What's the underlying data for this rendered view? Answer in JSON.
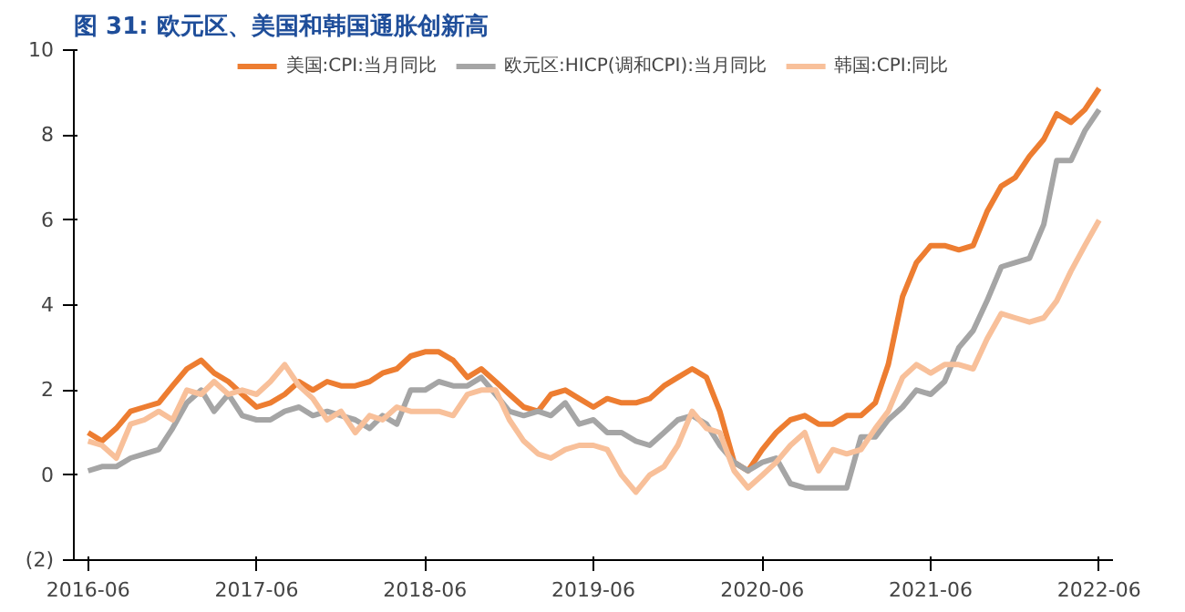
{
  "chart_data": {
    "type": "line",
    "title": "图 31: 欧元区、美国和韩国通胀创新高",
    "x": [
      "2016-06",
      "2016-07",
      "2016-08",
      "2016-09",
      "2016-10",
      "2016-11",
      "2016-12",
      "2017-01",
      "2017-02",
      "2017-03",
      "2017-04",
      "2017-05",
      "2017-06",
      "2017-07",
      "2017-08",
      "2017-09",
      "2017-10",
      "2017-11",
      "2017-12",
      "2018-01",
      "2018-02",
      "2018-03",
      "2018-04",
      "2018-05",
      "2018-06",
      "2018-07",
      "2018-08",
      "2018-09",
      "2018-10",
      "2018-11",
      "2018-12",
      "2019-01",
      "2019-02",
      "2019-03",
      "2019-04",
      "2019-05",
      "2019-06",
      "2019-07",
      "2019-08",
      "2019-09",
      "2019-10",
      "2019-11",
      "2019-12",
      "2020-01",
      "2020-02",
      "2020-03",
      "2020-04",
      "2020-05",
      "2020-06",
      "2020-07",
      "2020-08",
      "2020-09",
      "2020-10",
      "2020-11",
      "2020-12",
      "2021-01",
      "2021-02",
      "2021-03",
      "2021-04",
      "2021-05",
      "2021-06",
      "2021-07",
      "2021-08",
      "2021-09",
      "2021-10",
      "2021-11",
      "2021-12",
      "2022-01",
      "2022-02",
      "2022-03",
      "2022-04",
      "2022-05",
      "2022-06"
    ],
    "series": [
      {
        "name": "美国:CPI:当月同比",
        "color": "#ed7d31",
        "values": [
          1.0,
          0.8,
          1.1,
          1.5,
          1.6,
          1.7,
          2.1,
          2.5,
          2.7,
          2.4,
          2.2,
          1.9,
          1.6,
          1.7,
          1.9,
          2.2,
          2.0,
          2.2,
          2.1,
          2.1,
          2.2,
          2.4,
          2.5,
          2.8,
          2.9,
          2.9,
          2.7,
          2.3,
          2.5,
          2.2,
          1.9,
          1.6,
          1.5,
          1.9,
          2.0,
          1.8,
          1.6,
          1.8,
          1.7,
          1.7,
          1.8,
          2.1,
          2.3,
          2.5,
          2.3,
          1.5,
          0.3,
          0.1,
          0.6,
          1.0,
          1.3,
          1.4,
          1.2,
          1.2,
          1.4,
          1.4,
          1.7,
          2.6,
          4.2,
          5.0,
          5.4,
          5.4,
          5.3,
          5.4,
          6.2,
          6.8,
          7.0,
          7.5,
          7.9,
          8.5,
          8.3,
          8.6,
          9.1
        ]
      },
      {
        "name": "欧元区:HICP(调和CPI):当月同比",
        "color": "#a5a5a5",
        "values": [
          0.1,
          0.2,
          0.2,
          0.4,
          0.5,
          0.6,
          1.1,
          1.7,
          2.0,
          1.5,
          1.9,
          1.4,
          1.3,
          1.3,
          1.5,
          1.6,
          1.4,
          1.5,
          1.4,
          1.3,
          1.1,
          1.4,
          1.2,
          2.0,
          2.0,
          2.2,
          2.1,
          2.1,
          2.3,
          1.9,
          1.5,
          1.4,
          1.5,
          1.4,
          1.7,
          1.2,
          1.3,
          1.0,
          1.0,
          0.8,
          0.7,
          1.0,
          1.3,
          1.4,
          1.2,
          0.7,
          0.3,
          0.1,
          0.3,
          0.4,
          -0.2,
          -0.3,
          -0.3,
          -0.3,
          -0.3,
          0.9,
          0.9,
          1.3,
          1.6,
          2.0,
          1.9,
          2.2,
          3.0,
          3.4,
          4.1,
          4.9,
          5.0,
          5.1,
          5.9,
          7.4,
          7.4,
          8.1,
          8.6
        ]
      },
      {
        "name": "韩国:CPI:同比",
        "color": "#f8c09a",
        "values": [
          0.8,
          0.7,
          0.4,
          1.2,
          1.3,
          1.5,
          1.3,
          2.0,
          1.9,
          2.2,
          1.9,
          2.0,
          1.9,
          2.2,
          2.6,
          2.1,
          1.8,
          1.3,
          1.5,
          1.0,
          1.4,
          1.3,
          1.6,
          1.5,
          1.5,
          1.5,
          1.4,
          1.9,
          2.0,
          2.0,
          1.3,
          0.8,
          0.5,
          0.4,
          0.6,
          0.7,
          0.7,
          0.6,
          0.0,
          -0.4,
          0.0,
          0.2,
          0.7,
          1.5,
          1.1,
          1.0,
          0.1,
          -0.3,
          0.0,
          0.3,
          0.7,
          1.0,
          0.1,
          0.6,
          0.5,
          0.6,
          1.1,
          1.5,
          2.3,
          2.6,
          2.4,
          2.6,
          2.6,
          2.5,
          3.2,
          3.8,
          3.7,
          3.6,
          3.7,
          4.1,
          4.8,
          5.4,
          6.0
        ]
      }
    ],
    "xlim": [
      "2016-05",
      "2022-07"
    ],
    "xticks": [
      "2016-06",
      "2017-06",
      "2018-06",
      "2019-06",
      "2020-06",
      "2021-06",
      "2022-06"
    ],
    "ylim": [
      -2,
      10
    ],
    "yticks": [
      {
        "value": -2,
        "label": "(2)"
      },
      0,
      2,
      4,
      6,
      8,
      10
    ],
    "grid": false,
    "legend": "top",
    "marker": "none",
    "line_style": "solid"
  }
}
